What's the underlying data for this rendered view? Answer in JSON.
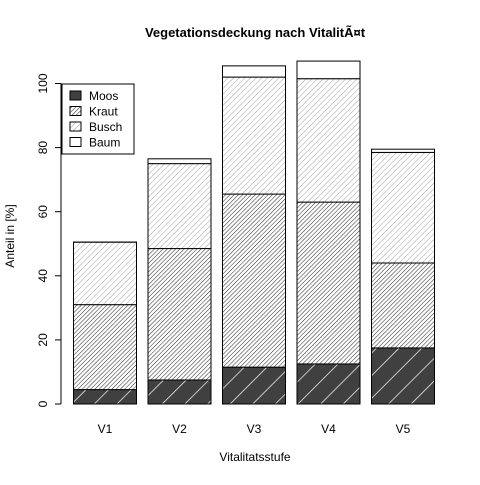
{
  "chart_data": {
    "type": "bar",
    "stacked": true,
    "title": "Vegetationsdeckung nach VitalitÃ¤t",
    "xlabel": "Vitalitatsstufe",
    "ylabel": "Anteil in [%]",
    "categories": [
      "V1",
      "V2",
      "V3",
      "V4",
      "V5"
    ],
    "ylim": [
      0,
      105
    ],
    "yticks": [
      0,
      20,
      40,
      60,
      80,
      100
    ],
    "grid": false,
    "legend_position": "top-left",
    "series": [
      {
        "name": "Moos",
        "values": [
          4.5,
          7.5,
          11.5,
          12.5,
          17.5
        ],
        "fill": "#404040",
        "hatch": "sparse"
      },
      {
        "name": "Kraut",
        "values": [
          26.5,
          41,
          54,
          50.5,
          26.5
        ],
        "fill": "#ffffff",
        "hatch": "dense"
      },
      {
        "name": "Busch",
        "values": [
          19.5,
          26.5,
          36.5,
          38.5,
          34.5
        ],
        "fill": "#ffffff",
        "hatch": "medium"
      },
      {
        "name": "Baum",
        "values": [
          0,
          1.5,
          3.5,
          5.5,
          1.0
        ],
        "fill": "#ffffff",
        "hatch": "none"
      }
    ]
  }
}
